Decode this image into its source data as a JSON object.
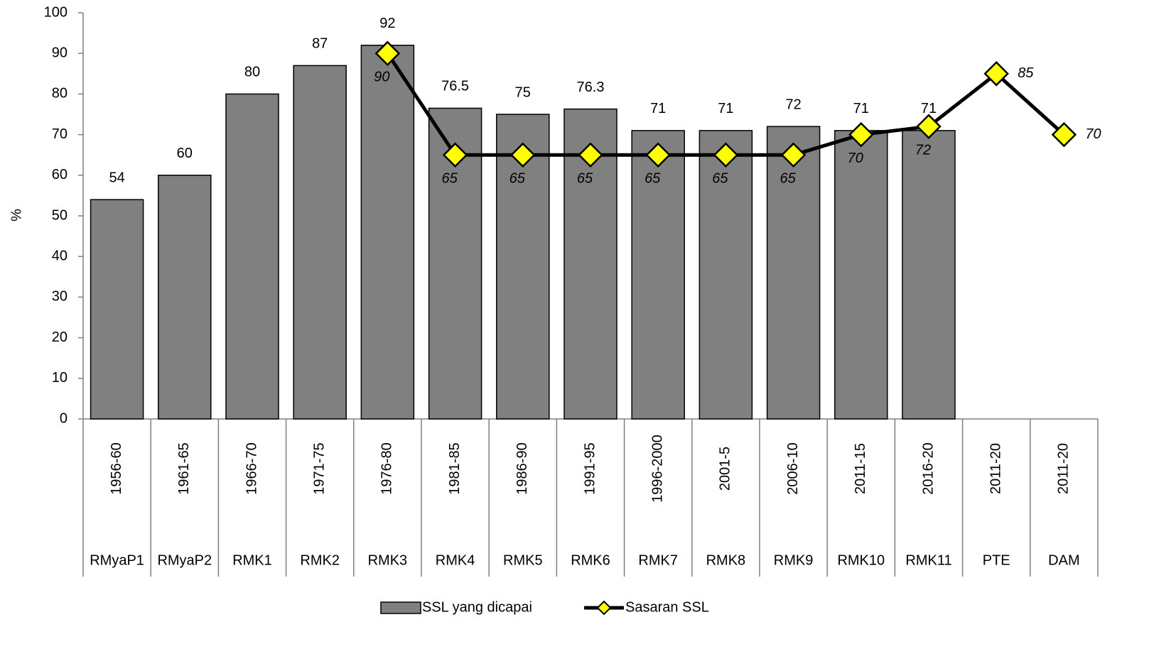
{
  "chart_data": {
    "type": "bar_line",
    "ylabel": "%",
    "categories": [
      "1956-60",
      "1961-65",
      "1966-70",
      "1971-75",
      "1976-80",
      "1981-85",
      "1986-90",
      "1991-95",
      "1996-2000",
      "2001-5",
      "2006-10",
      "2011-15",
      "2016-20",
      "2011-20",
      "2011-20"
    ],
    "category_groups": [
      "RMyaP1",
      "RMyaP2",
      "RMK1",
      "RMK2",
      "RMK3",
      "RMK4",
      "RMK5",
      "RMK6",
      "RMK7",
      "RMK8",
      "RMK9",
      "RMK10",
      "RMK11",
      "PTE",
      "DAM"
    ],
    "series": [
      {
        "name": "SSL yang dicapai",
        "type": "bar",
        "color": "#808080",
        "values": [
          54,
          60,
          80,
          87,
          92,
          76.5,
          75,
          76.3,
          71,
          71,
          72,
          71,
          71,
          null,
          null
        ]
      },
      {
        "name": "Sasaran SSL",
        "type": "line",
        "color": "#000000",
        "marker_color": "#ffff00",
        "values": [
          null,
          null,
          null,
          null,
          90,
          65,
          65,
          65,
          65,
          65,
          65,
          70,
          72,
          85,
          70
        ],
        "label_colors": [
          null,
          null,
          null,
          null,
          "#ffffff",
          "#ffffff",
          "#ffffff",
          "#ffffff",
          "#ffffff",
          "#ffffff",
          "#ffffff",
          "#ffffff",
          "#ffffff",
          "#ff0000",
          "#ff0000"
        ]
      }
    ],
    "ylim": [
      0,
      100
    ],
    "yticks": [
      0,
      10,
      20,
      30,
      40,
      50,
      60,
      70,
      80,
      90,
      100
    ],
    "grid": false,
    "legend": "bottom"
  }
}
